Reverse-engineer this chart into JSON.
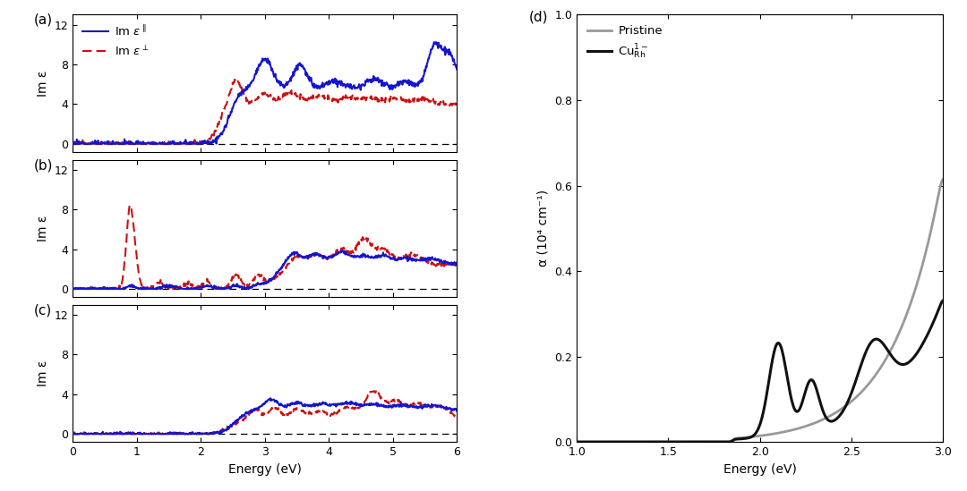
{
  "fig_width": 10.8,
  "fig_height": 5.49,
  "left_panels": {
    "xlim": [
      0,
      6
    ],
    "ylim": [
      -0.8,
      13
    ],
    "yticks": [
      0,
      4,
      8,
      12
    ],
    "xticks": [
      0,
      1,
      2,
      3,
      4,
      5,
      6
    ],
    "xlabel": "Energy (eV)",
    "ylabel": "Im ε",
    "blue_color": "#1515d0",
    "red_color": "#cc1111",
    "dashed_color": "#000000"
  },
  "right_panel": {
    "xlim": [
      1.0,
      3.0
    ],
    "ylim": [
      0,
      1.0
    ],
    "yticks": [
      0.0,
      0.2,
      0.4,
      0.6,
      0.8,
      1.0
    ],
    "xticks": [
      1.0,
      1.5,
      2.0,
      2.5,
      3.0
    ],
    "xlabel": "Energy (eV)",
    "ylabel": "α (10⁴ cm⁻¹)",
    "gray_color": "#999999",
    "black_color": "#111111"
  },
  "panel_labels": [
    "(a)",
    "(b)",
    "(c)",
    "(d)"
  ]
}
